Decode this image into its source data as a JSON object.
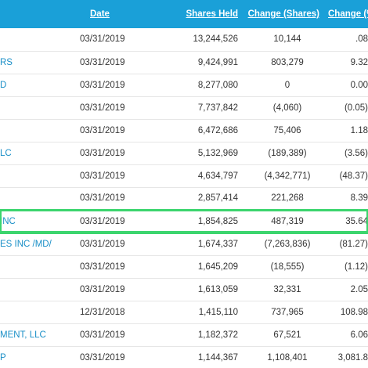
{
  "table": {
    "headers": {
      "holder": "",
      "date": "Date",
      "shares_held": "Shares Held",
      "change_shares": "Change (Shares)",
      "change_pct": "Change (%"
    },
    "rows": [
      {
        "holder": "",
        "date": "03/31/2019",
        "shares_held": "13,244,526",
        "change_shares": "10,144",
        "change_pct": ".08"
      },
      {
        "holder": "RS",
        "date": "03/31/2019",
        "shares_held": "9,424,991",
        "change_shares": "803,279",
        "change_pct": "9.32"
      },
      {
        "holder": "D",
        "date": "03/31/2019",
        "shares_held": "8,277,080",
        "change_shares": "0",
        "change_pct": "0.00"
      },
      {
        "holder": "",
        "date": "03/31/2019",
        "shares_held": "7,737,842",
        "change_shares": "(4,060)",
        "change_pct": "(0.05)"
      },
      {
        "holder": "",
        "date": "03/31/2019",
        "shares_held": "6,472,686",
        "change_shares": "75,406",
        "change_pct": "1.18"
      },
      {
        "holder": "LC",
        "date": "03/31/2019",
        "shares_held": "5,132,969",
        "change_shares": "(189,389)",
        "change_pct": "(3.56)"
      },
      {
        "holder": "",
        "date": "03/31/2019",
        "shares_held": "4,634,797",
        "change_shares": "(4,342,771)",
        "change_pct": "(48.37)"
      },
      {
        "holder": "",
        "date": "03/31/2019",
        "shares_held": "2,857,414",
        "change_shares": "221,268",
        "change_pct": "8.39"
      },
      {
        "holder": "INC",
        "date": "03/31/2019",
        "shares_held": "1,854,825",
        "change_shares": "487,319",
        "change_pct": "35.64"
      },
      {
        "holder": "ES INC /MD/",
        "date": "03/31/2019",
        "shares_held": "1,674,337",
        "change_shares": "(7,263,836)",
        "change_pct": "(81.27)"
      },
      {
        "holder": "",
        "date": "03/31/2019",
        "shares_held": "1,645,209",
        "change_shares": "(18,555)",
        "change_pct": "(1.12)"
      },
      {
        "holder": "",
        "date": "03/31/2019",
        "shares_held": "1,613,059",
        "change_shares": "32,331",
        "change_pct": "2.05"
      },
      {
        "holder": "",
        "date": "12/31/2018",
        "shares_held": "1,415,110",
        "change_shares": "737,965",
        "change_pct": "108.98"
      },
      {
        "holder": "MENT, LLC",
        "date": "03/31/2019",
        "shares_held": "1,182,372",
        "change_shares": "67,521",
        "change_pct": "6.06"
      },
      {
        "holder": "P",
        "date": "03/31/2019",
        "shares_held": "1,144,367",
        "change_shares": "1,108,401",
        "change_pct": "3,081.8"
      }
    ],
    "highlighted_row_index": 8
  },
  "colors": {
    "header_bg": "#1aa0d8",
    "link": "#1a8fc7",
    "highlight": "#3cd56e"
  }
}
